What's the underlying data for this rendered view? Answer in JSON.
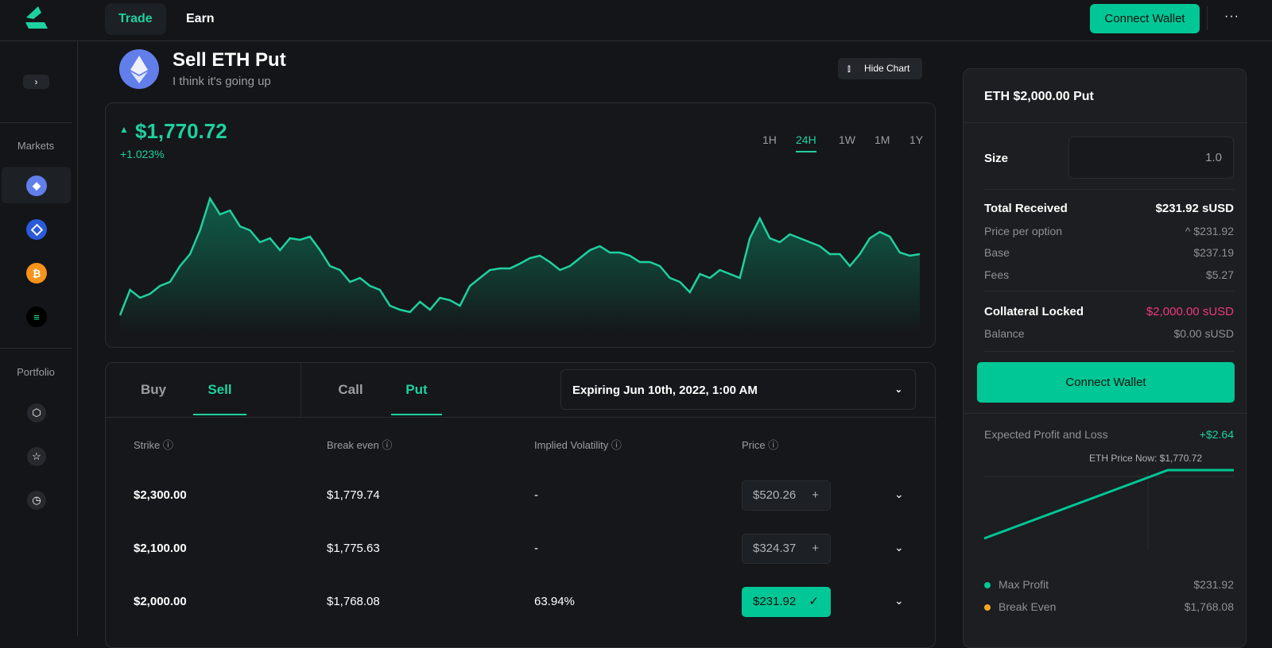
{
  "nav": {
    "tabs": [
      "Trade",
      "Earn"
    ],
    "connect_wallet": "Connect Wallet",
    "more": "···"
  },
  "sidebar": {
    "expand": "›",
    "markets_label": "Markets",
    "markets": [
      {
        "name": "ETH",
        "color": "#627eea"
      },
      {
        "name": "LINK",
        "color": "#2a5ada"
      },
      {
        "name": "BTC",
        "color": "#f7931a"
      },
      {
        "name": "SOL",
        "color": "#000000"
      }
    ],
    "portfolio_label": "Portfolio",
    "portfolio_icons": [
      "cube-icon",
      "star-icon",
      "clock-icon"
    ]
  },
  "header": {
    "title": "Sell ETH Put",
    "subtitle": "I think it's going up",
    "hide_chart": "Hide Chart"
  },
  "chart": {
    "price": "$1,770.72",
    "change": "+1.023%",
    "timeframes": [
      "1H",
      "24H",
      "1W",
      "1M",
      "1Y"
    ],
    "active_timeframe": "24H",
    "accent": "#1fd1a0"
  },
  "chart_data": {
    "type": "area",
    "title": "",
    "xlabel": "",
    "ylabel": "",
    "grid": false,
    "values": [
      3,
      35,
      25,
      30,
      40,
      45,
      65,
      80,
      110,
      150,
      130,
      135,
      115,
      110,
      95,
      100,
      85,
      100,
      98,
      102,
      85,
      65,
      60,
      45,
      50,
      40,
      35,
      15,
      10,
      7,
      20,
      10,
      25,
      22,
      15,
      40,
      50,
      60,
      62,
      62,
      68,
      75,
      78,
      70,
      60,
      65,
      75,
      85,
      90,
      82,
      82,
      78,
      70,
      70,
      65,
      50,
      45,
      32,
      55,
      50,
      60,
      55,
      50,
      100,
      125,
      100,
      95,
      105,
      100,
      95,
      90,
      80,
      80,
      65,
      80,
      100,
      108,
      102,
      82,
      78,
      80
    ]
  },
  "trade": {
    "side_tabs": [
      "Buy",
      "Sell"
    ],
    "active_side": "Sell",
    "type_tabs": [
      "Call",
      "Put"
    ],
    "active_type": "Put",
    "expiry": "Expiring Jun 10th, 2022, 1:00 AM",
    "columns": [
      "Strike",
      "Break even",
      "Implied Volatility",
      "Price"
    ],
    "rows": [
      {
        "strike": "$2,300.00",
        "break_even": "$1,779.74",
        "iv": "-",
        "price": "$520.26",
        "selected": false
      },
      {
        "strike": "$2,100.00",
        "break_even": "$1,775.63",
        "iv": "-",
        "price": "$324.37",
        "selected": false
      },
      {
        "strike": "$2,000.00",
        "break_even": "$1,768.08",
        "iv": "63.94%",
        "price": "$231.92",
        "selected": true
      }
    ]
  },
  "panel": {
    "title": "ETH $2,000.00 Put",
    "size_label": "Size",
    "size_value": "1.0",
    "total_received_label": "Total Received",
    "total_received": "$231.92 sUSD",
    "price_per_option_label": "Price per option",
    "price_per_option": "^ $231.92",
    "base_label": "Base",
    "base": "$237.19",
    "fees_label": "Fees",
    "fees": "$5.27",
    "collateral_label": "Collateral Locked",
    "collateral": "$2,000.00 sUSD",
    "collateral_color": "#f0377f",
    "balance_label": "Balance",
    "balance": "$0.00 sUSD",
    "connect_wallet": "Connect Wallet",
    "pnl_label": "Expected Profit and Loss",
    "pnl": "+$2.64",
    "eth_now": "ETH Price Now: $1,770.72",
    "max_profit_label": "Max Profit",
    "max_profit": "$231.92",
    "max_profit_color": "#00c795",
    "break_even_label": "Break Even",
    "break_even": "$1,768.08",
    "break_even_color": "#f5a623"
  }
}
